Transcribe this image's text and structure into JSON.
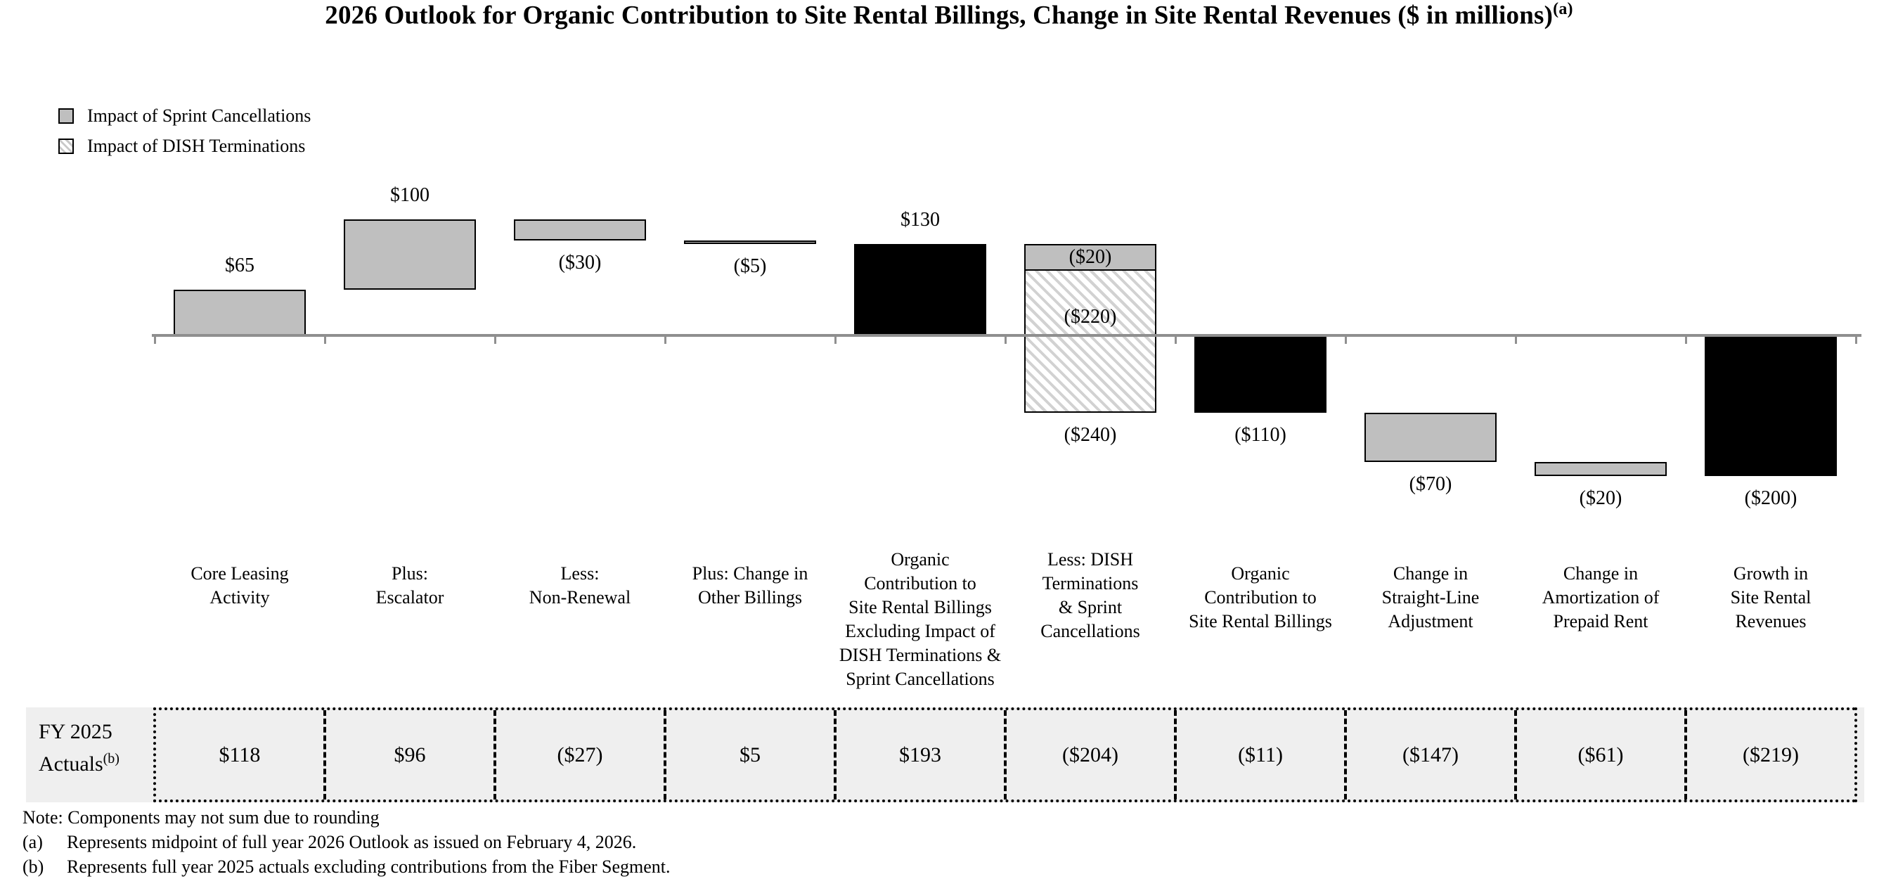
{
  "title": {
    "text": "2026 Outlook for Organic Contribution to Site Rental Billings, Change in Site Rental Revenues ($ in millions)",
    "superscript": "(a)"
  },
  "legend": [
    {
      "label": "Impact of Sprint Cancellations",
      "swatch": "gray"
    },
    {
      "label": "Impact of DISH Terminations",
      "swatch": "hatch"
    }
  ],
  "colors": {
    "bar_gray": "#bfbfbf",
    "bar_black": "#000000",
    "hatch_line": "#d2d2d2",
    "axis": "#8f8f8f",
    "row_background": "#efefef"
  },
  "chart_data": {
    "type": "bar",
    "subtype": "waterfall",
    "unit": "$ in millions",
    "title": "2026 Outlook for Organic Contribution to Site Rental Billings, Change in Site Rental Revenues ($ in millions)(a)",
    "axis": {
      "baseline_value": 0,
      "ylim": [
        -240,
        170
      ],
      "gridlines": false,
      "value_axis_shown": false
    },
    "categories": [
      {
        "label": "Core Leasing Activity",
        "lines": [
          "Core Leasing",
          "Activity"
        ],
        "value": 65,
        "start": 0,
        "end": 65,
        "bar": "gray",
        "value_label": "$65",
        "value_label_position": "above",
        "fy2025": "$118"
      },
      {
        "label": "Plus: Escalator",
        "lines": [
          "Plus:",
          "Escalator"
        ],
        "value": 100,
        "start": 65,
        "end": 165,
        "bar": "gray",
        "value_label": "$100",
        "value_label_position": "above",
        "fy2025": "$96"
      },
      {
        "label": "Less: Non-Renewal",
        "lines": [
          "Less:",
          "Non-Renewal"
        ],
        "value": -30,
        "start": 165,
        "end": 135,
        "bar": "gray",
        "value_label": "($30)",
        "value_label_position": "below",
        "fy2025": "($27)"
      },
      {
        "label": "Plus: Change in Other Billings",
        "lines": [
          "Plus: Change in",
          "Other Billings"
        ],
        "value": -5,
        "start": 135,
        "end": 130,
        "bar": "gray",
        "value_label": "($5)",
        "value_label_position": "below",
        "fy2025": "$5"
      },
      {
        "label": "Organic Contribution to Site Rental Billings Excluding Impact of DISH Terminations & Sprint Cancellations",
        "lines": [
          "Organic",
          "Contribution to",
          "Site Rental Billings",
          "Excluding Impact of",
          "DISH Terminations &",
          "Sprint Cancellations"
        ],
        "value": 130,
        "start": 0,
        "end": 130,
        "bar": "black",
        "is_total": true,
        "value_label": "$130",
        "value_label_position": "above",
        "fy2025": "$193"
      },
      {
        "label": "Less: DISH Terminations & Sprint Cancellations",
        "lines": [
          "Less: DISH",
          "Terminations",
          "& Sprint",
          "Cancellations"
        ],
        "value": -240,
        "start": 130,
        "end": -110,
        "bar": "stacked",
        "segments": [
          {
            "value": -20,
            "label": "($20)",
            "fill": "gray",
            "legend": "Impact of Sprint Cancellations"
          },
          {
            "value": -220,
            "label": "($220)",
            "fill": "hatch",
            "legend": "Impact of DISH Terminations"
          }
        ],
        "value_label": "($240)",
        "value_label_position": "below",
        "fy2025": "($204)"
      },
      {
        "label": "Organic Contribution to Site Rental Billings",
        "lines": [
          "Organic",
          "Contribution to",
          "Site Rental Billings"
        ],
        "value": -110,
        "start": 0,
        "end": -110,
        "bar": "black",
        "is_total": true,
        "value_label": "($110)",
        "value_label_position": "below",
        "fy2025": "($11)"
      },
      {
        "label": "Change in Straight-Line Adjustment",
        "lines": [
          "Change in",
          "Straight-Line",
          "Adjustment"
        ],
        "value": -70,
        "start": -110,
        "end": -180,
        "bar": "gray",
        "value_label": "($70)",
        "value_label_position": "below",
        "fy2025": "($147)"
      },
      {
        "label": "Change in Amortization of Prepaid Rent",
        "lines": [
          "Change in",
          "Amortization of",
          "Prepaid Rent"
        ],
        "value": -20,
        "start": -180,
        "end": -200,
        "bar": "gray",
        "value_label": "($20)",
        "value_label_position": "below",
        "fy2025": "($61)"
      },
      {
        "label": "Growth in Site Rental Revenues",
        "lines": [
          "Growth in",
          "Site Rental",
          "Revenues"
        ],
        "value": -200,
        "start": 0,
        "end": -200,
        "bar": "black",
        "is_total": true,
        "value_label": "($200)",
        "value_label_position": "below",
        "fy2025": "($219)"
      }
    ],
    "fy_row": {
      "label_lines": [
        "FY 2025",
        "Actuals"
      ],
      "superscript": "(b)",
      "values": [
        "$118",
        "$96",
        "($27)",
        "$5",
        "$193",
        "($204)",
        "($11)",
        "($147)",
        "($61)",
        "($219)"
      ]
    }
  },
  "notes": {
    "note": "Note: Components may not sum due to rounding",
    "footnotes": [
      {
        "marker": "(a)",
        "text": "Represents midpoint of full year 2026 Outlook as issued on February 4, 2026."
      },
      {
        "marker": "(b)",
        "text": "Represents full year 2025 actuals excluding contributions from the Fiber Segment."
      }
    ]
  }
}
